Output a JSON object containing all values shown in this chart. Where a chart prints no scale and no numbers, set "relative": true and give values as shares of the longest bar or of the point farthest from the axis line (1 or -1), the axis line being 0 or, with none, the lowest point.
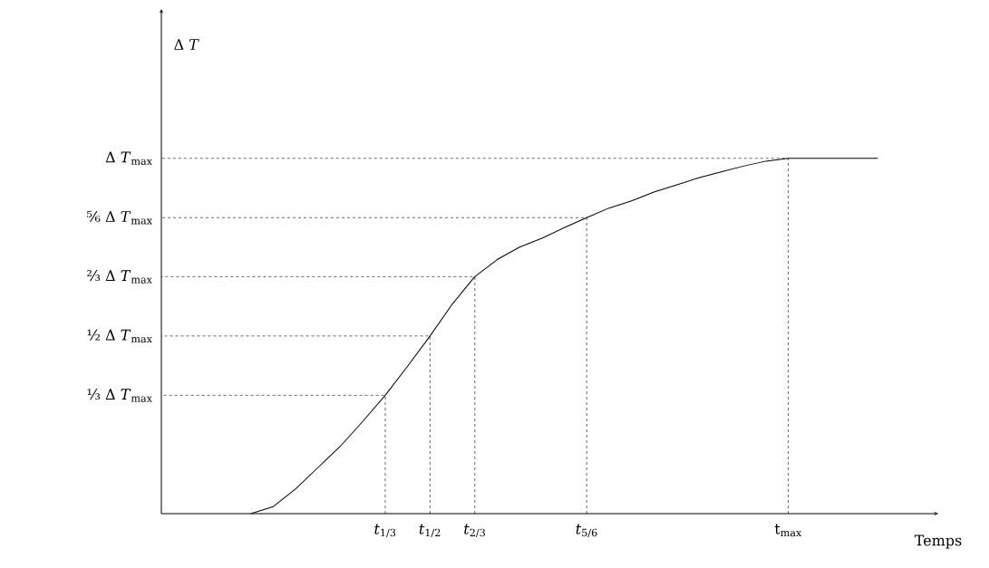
{
  "chart_data": {
    "type": "line",
    "xlabel": "Temps",
    "relative": true,
    "categories": [
      null,
      null,
      null,
      null,
      null,
      null,
      "*t*$_{1/3}$",
      null,
      "*t*$_{1/2}$",
      null,
      "*t*$_{2/3}$",
      null,
      null,
      null,
      null,
      "*t*$_{5/6}$",
      null,
      null,
      null,
      null,
      null,
      null,
      null,
      null,
      "t$_{max}$",
      null,
      null,
      null,
      null
    ],
    "annotations": [
      {
        "text": "Δ *T*"
      },
      "⅓ Δ *T*$_{max}$",
      "½ Δ *T*$_{max}$",
      "⅔ Δ *T*$_{max}$",
      "⅚ Δ *T*$_{max}$",
      "Δ *T*$_{max}$"
    ],
    "series": [
      {
        "color": "#000000",
        "values": [
          0,
          0.02,
          0.07,
          0.13,
          0.19,
          0.26,
          0.333,
          0.415,
          0.5,
          0.59,
          0.667,
          0.715,
          0.75,
          0.775,
          0.805,
          0.833,
          0.86,
          0.88,
          0.905,
          0.925,
          0.945,
          0.962,
          0.978,
          0.992,
          1,
          1,
          1,
          1,
          1
        ]
      }
    ],
    "marker": "none",
    "line_style": "solid"
  }
}
